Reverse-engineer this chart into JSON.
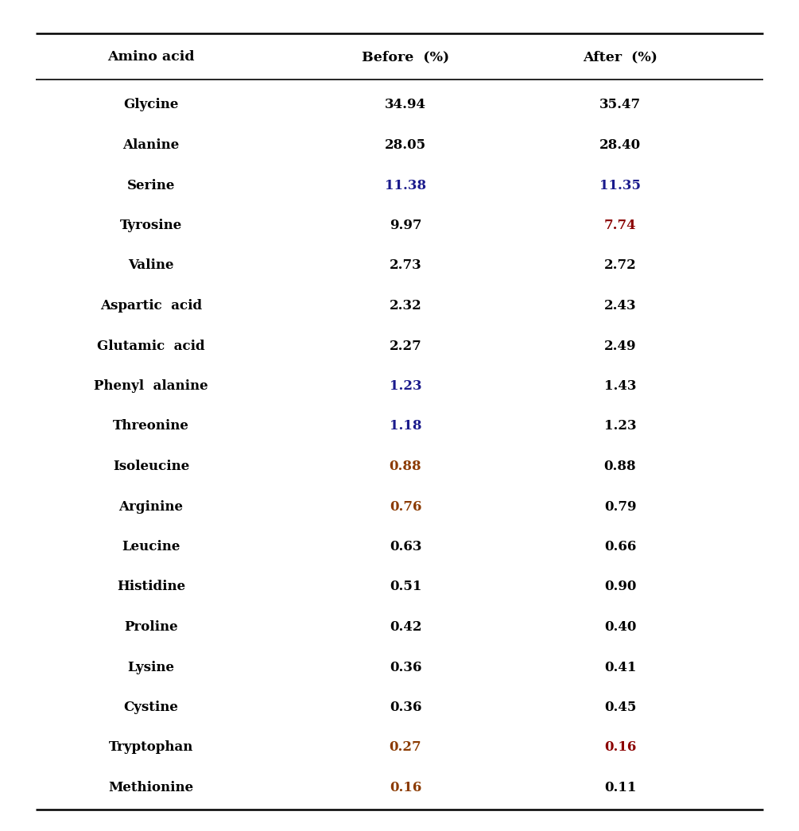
{
  "headers": [
    "Amino acid",
    "Before  (%)",
    "After  (%)"
  ],
  "rows": [
    [
      "Glycine",
      "34.94",
      "35.47"
    ],
    [
      "Alanine",
      "28.05",
      "28.40"
    ],
    [
      "Serine",
      "11.38",
      "11.35"
    ],
    [
      "Tyrosine",
      "9.97",
      "7.74"
    ],
    [
      "Valine",
      "2.73",
      "2.72"
    ],
    [
      "Aspartic  acid",
      "2.32",
      "2.43"
    ],
    [
      "Glutamic  acid",
      "2.27",
      "2.49"
    ],
    [
      "Phenyl  alanine",
      "1.23",
      "1.43"
    ],
    [
      "Threonine",
      "1.18",
      "1.23"
    ],
    [
      "Isoleucine",
      "0.88",
      "0.88"
    ],
    [
      "Arginine",
      "0.76",
      "0.79"
    ],
    [
      "Leucine",
      "0.63",
      "0.66"
    ],
    [
      "Histidine",
      "0.51",
      "0.90"
    ],
    [
      "Proline",
      "0.42",
      "0.40"
    ],
    [
      "Lysine",
      "0.36",
      "0.41"
    ],
    [
      "Cystine",
      "0.36",
      "0.45"
    ],
    [
      "Tryptophan",
      "0.27",
      "0.16"
    ],
    [
      "Methionine",
      "0.16",
      "0.11"
    ]
  ],
  "before_colors": [
    "#000000",
    "#000000",
    "#00008B",
    "#00008B",
    "#00008B",
    "#000000",
    "#000000",
    "#00008B",
    "#00008B",
    "#8B4513",
    "#8B4513",
    "#000000",
    "#000000",
    "#000000",
    "#000000",
    "#000000",
    "#8B4513",
    "#8B4513"
  ],
  "after_colors": [
    "#000000",
    "#000000",
    "#00008B",
    "#8B0000",
    "#8B0000",
    "#000000",
    "#000000",
    "#000000",
    "#000000",
    "#000000",
    "#000000",
    "#000000",
    "#000000",
    "#000000",
    "#000000",
    "#000000",
    "#8B0000",
    "#000000"
  ],
  "header_color": "#000000",
  "amino_color": "#000000",
  "bg_color": "#ffffff",
  "figsize": [
    10.05,
    10.45
  ],
  "dpi": 100
}
